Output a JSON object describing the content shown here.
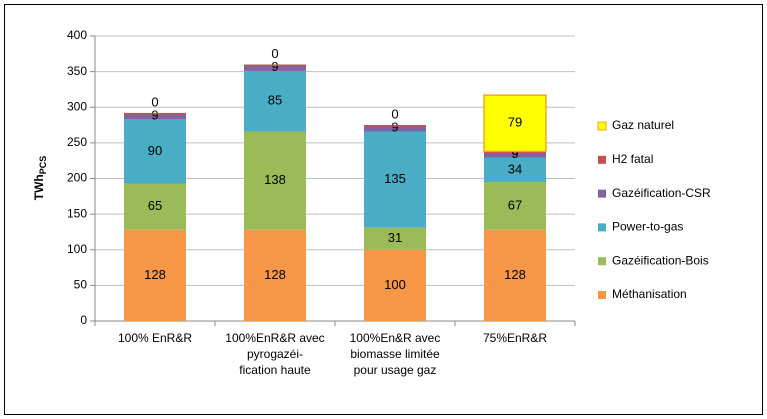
{
  "chart_data": {
    "type": "stacked_bar",
    "y_label": "TWh",
    "y_label_sub": "PCS",
    "categories": [
      [
        "100% EnR&R"
      ],
      [
        "100%EnR&R avec",
        "pyrogazéi-",
        "fication haute"
      ],
      [
        "100%En&R avec",
        "biomasse limitée",
        "pour usage gaz"
      ],
      [
        "75%EnR&R"
      ]
    ],
    "series": [
      {
        "name": "Méthanisation",
        "color": "#f79646",
        "values": [
          128,
          128,
          100,
          128
        ]
      },
      {
        "name": "Gazéification-Bois",
        "color": "#9bbb59",
        "values": [
          65,
          138,
          31,
          67
        ]
      },
      {
        "name": "Power-to-gas",
        "color": "#4bacc6",
        "values": [
          90,
          85,
          135,
          34
        ]
      },
      {
        "name": "Gazéification-CSR",
        "color": "#8064a2",
        "values": [
          9,
          9,
          9,
          9
        ]
      },
      {
        "name": "H2 fatal",
        "color": "#c0504d",
        "values": [
          0,
          0,
          0,
          0
        ]
      },
      {
        "name": "Gaz naturel",
        "color": "#ffff00",
        "edgecolor": "#f5a623",
        "values": [
          null,
          null,
          null,
          79
        ]
      }
    ],
    "ylim": [
      0,
      400
    ],
    "yticks": [
      0,
      50,
      100,
      150,
      200,
      250,
      300,
      350,
      400
    ],
    "grid": true,
    "legend": "right"
  }
}
